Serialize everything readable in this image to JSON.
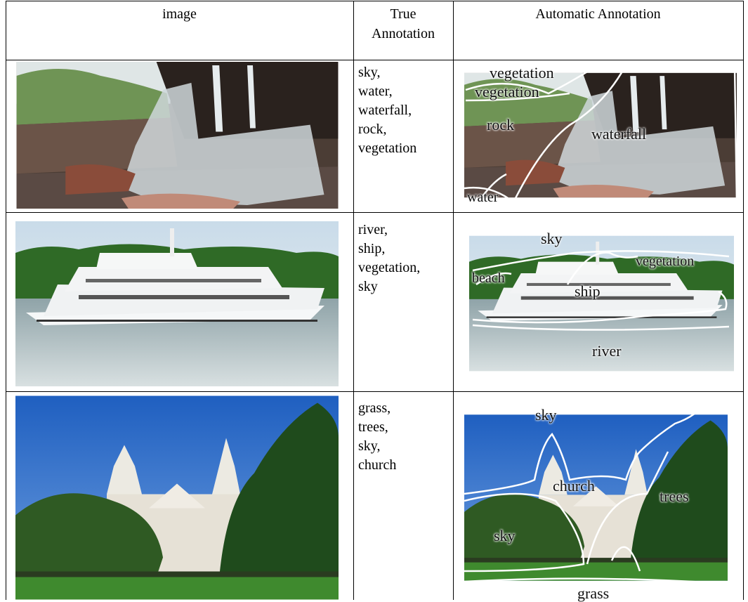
{
  "table": {
    "header": [
      "image",
      "True Annotation",
      "Automatic Annotation"
    ],
    "rows": [
      {
        "true_annotation": [
          "sky,",
          "water,",
          "waterfall,",
          "rock,",
          "vegetation"
        ],
        "automatic_labels": [
          "vegetation",
          "vegetation",
          "rock",
          "waterfall",
          "water"
        ]
      },
      {
        "true_annotation": [
          "river,",
          "ship,",
          "vegetation,",
          "sky"
        ],
        "automatic_labels": [
          "sky",
          "beach",
          "vegetation",
          "ship",
          "river"
        ]
      },
      {
        "true_annotation": [
          "grass,",
          "trees,",
          "sky,",
          "church"
        ],
        "automatic_labels": [
          "sky",
          "church",
          "trees",
          "sky",
          "grass"
        ]
      }
    ]
  }
}
